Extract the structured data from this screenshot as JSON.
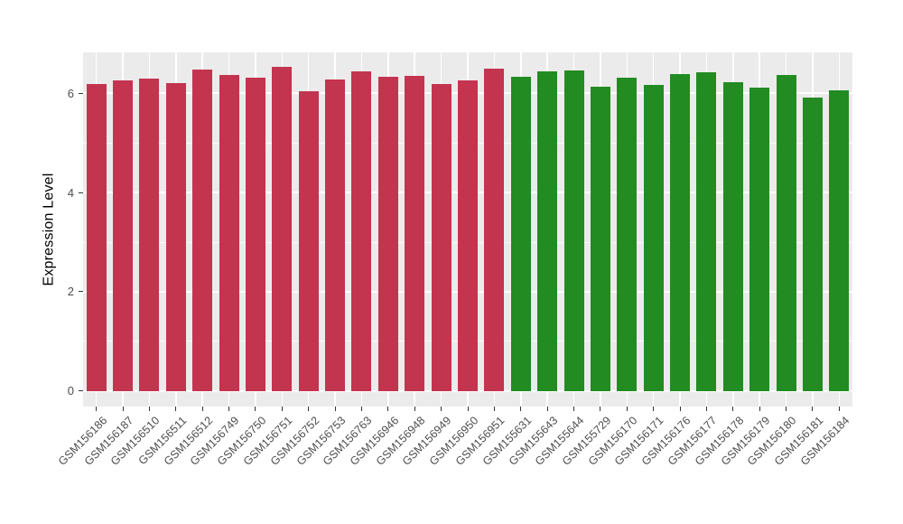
{
  "figure": {
    "background": "#FFFFFF",
    "panel_background": "#EBEBEB",
    "grid_major_color": "#FFFFFF",
    "grid_minor_color": "#FFFFFF",
    "axis_text_color": "#4D4D4D",
    "axis_title_color": "#000000",
    "tick_mark_color": "#333333"
  },
  "chart_data": {
    "type": "bar",
    "title": "",
    "xlabel": "",
    "ylabel": "Expression Level",
    "ylim": [
      -0.31,
      6.82
    ],
    "yticks": [
      0,
      2,
      4,
      6
    ],
    "yticks_minor": [
      1,
      3,
      5
    ],
    "grid": true,
    "legend": "none",
    "x_label_rotation_deg": 45,
    "categories": [
      "GSM156186",
      "GSM156187",
      "GSM156510",
      "GSM156511",
      "GSM156512",
      "GSM156749",
      "GSM156750",
      "GSM156751",
      "GSM156752",
      "GSM156753",
      "GSM156763",
      "GSM156946",
      "GSM156948",
      "GSM156949",
      "GSM156950",
      "GSM156951",
      "GSM155631",
      "GSM155643",
      "GSM155644",
      "GSM155729",
      "GSM156170",
      "GSM156171",
      "GSM156176",
      "GSM156177",
      "GSM156178",
      "GSM156179",
      "GSM156180",
      "GSM156181",
      "GSM156184"
    ],
    "values": [
      6.18,
      6.25,
      6.3,
      6.21,
      6.48,
      6.37,
      6.31,
      6.52,
      6.04,
      6.28,
      6.44,
      6.33,
      6.35,
      6.18,
      6.25,
      6.5,
      6.33,
      6.43,
      6.46,
      6.12,
      6.31,
      6.17,
      6.39,
      6.42,
      6.22,
      6.11,
      6.37,
      5.91,
      6.05
    ],
    "groups": [
      {
        "color": "#C3344F",
        "from_index": 0,
        "to_index": 15
      },
      {
        "color": "#228B22",
        "from_index": 16,
        "to_index": 28
      }
    ]
  }
}
